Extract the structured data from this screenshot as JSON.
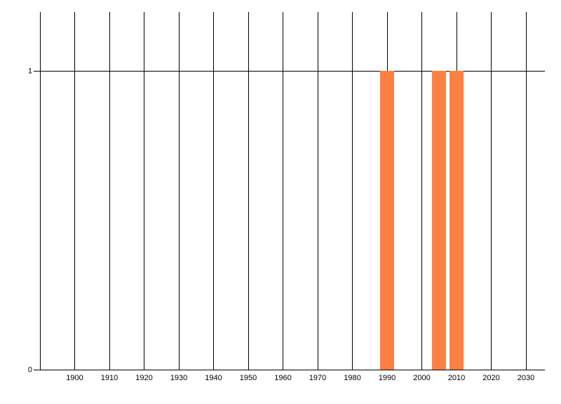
{
  "chart_data": {
    "type": "bar",
    "title": "",
    "xlabel": "",
    "ylabel": "",
    "x": [
      1990,
      2005,
      2010
    ],
    "values": [
      1,
      1,
      1
    ],
    "bar_width_years": 4,
    "x_axis": {
      "range": [
        1888,
        2035
      ],
      "gridline_years": [
        1890,
        1900,
        1910,
        1920,
        1930,
        1940,
        1950,
        1960,
        1970,
        1980,
        1990,
        2000,
        2010,
        2020,
        2030
      ],
      "tick_label_years": [
        1900,
        1910,
        1920,
        1930,
        1940,
        1950,
        1960,
        1970,
        1980,
        1990,
        2000,
        2010,
        2020,
        2030
      ]
    },
    "y_axis": {
      "range": [
        0,
        1
      ],
      "tick_labels": [
        "0",
        "1"
      ]
    },
    "grid": "vertical-only",
    "legend": false,
    "colors": {
      "bar": "#fc8044",
      "gridline": "#000000",
      "axis": "#000000",
      "text": "#000000",
      "background": "#ffffff"
    }
  }
}
